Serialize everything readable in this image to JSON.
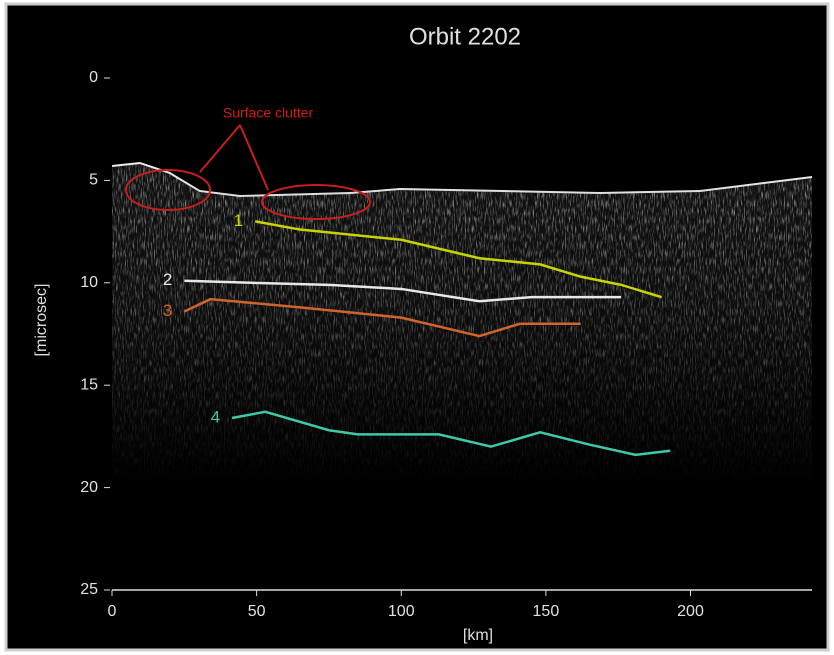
{
  "chart_data": {
    "type": "line",
    "title": "Orbit 2202",
    "x_label": "[km]",
    "y_label": "[microsec]",
    "annotation": "Surface clutter",
    "xlim": [
      0,
      242
    ],
    "xticks": [
      0,
      50,
      100,
      150,
      200
    ],
    "ylim": [
      25,
      0
    ],
    "yticks": [
      0,
      5,
      10,
      15,
      20,
      25
    ],
    "series": [
      {
        "name": "1",
        "color": "#c8d400",
        "x": [
          49.5,
          65,
          100,
          127,
          148,
          162,
          176,
          190
        ],
        "values": [
          7.0,
          7.4,
          7.9,
          8.8,
          9.1,
          9.7,
          10.1,
          10.7
        ]
      },
      {
        "name": "2",
        "color": "#e8e8e8",
        "x": [
          25,
          48,
          75,
          100,
          127,
          145,
          176
        ],
        "values": [
          9.9,
          10.0,
          10.1,
          10.3,
          10.9,
          10.7,
          10.7
        ]
      },
      {
        "name": "3",
        "color": "#d0642a",
        "x": [
          25,
          34,
          65,
          100,
          127,
          141,
          162
        ],
        "values": [
          11.4,
          10.8,
          11.2,
          11.7,
          12.6,
          12.0,
          12.0
        ]
      },
      {
        "name": "4",
        "color": "#3fc8a8",
        "x": [
          41.5,
          53,
          75,
          85,
          113,
          131,
          148,
          165,
          181,
          193
        ],
        "values": [
          16.6,
          16.3,
          17.2,
          17.4,
          17.4,
          18.0,
          17.3,
          17.9,
          18.4,
          18.2
        ]
      }
    ]
  }
}
